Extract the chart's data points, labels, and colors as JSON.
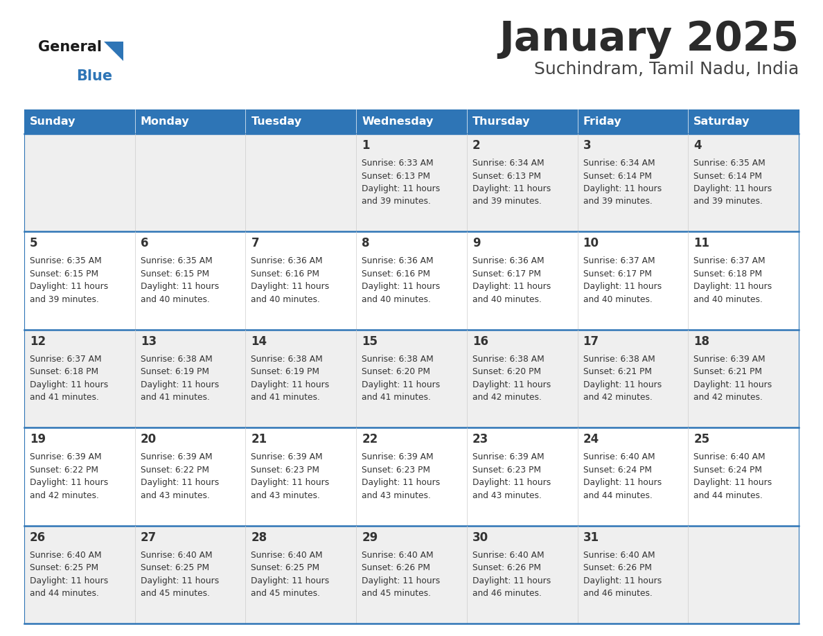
{
  "title": "January 2025",
  "subtitle": "Suchindram, Tamil Nadu, India",
  "header_bg": "#2E75B6",
  "header_text_color": "#FFFFFF",
  "cell_bg_odd": "#EFEFEF",
  "cell_bg_even": "#FFFFFF",
  "border_color": "#2E75B6",
  "day_headers": [
    "Sunday",
    "Monday",
    "Tuesday",
    "Wednesday",
    "Thursday",
    "Friday",
    "Saturday"
  ],
  "title_color": "#2B2B2B",
  "subtitle_color": "#444444",
  "day_number_color": "#333333",
  "cell_text_color": "#333333",
  "calendar_data": [
    [
      null,
      null,
      null,
      {
        "day": 1,
        "sunrise": "6:33 AM",
        "sunset": "6:13 PM",
        "daylight": "11 hours and 39 minutes."
      },
      {
        "day": 2,
        "sunrise": "6:34 AM",
        "sunset": "6:13 PM",
        "daylight": "11 hours and 39 minutes."
      },
      {
        "day": 3,
        "sunrise": "6:34 AM",
        "sunset": "6:14 PM",
        "daylight": "11 hours and 39 minutes."
      },
      {
        "day": 4,
        "sunrise": "6:35 AM",
        "sunset": "6:14 PM",
        "daylight": "11 hours and 39 minutes."
      }
    ],
    [
      {
        "day": 5,
        "sunrise": "6:35 AM",
        "sunset": "6:15 PM",
        "daylight": "11 hours and 39 minutes."
      },
      {
        "day": 6,
        "sunrise": "6:35 AM",
        "sunset": "6:15 PM",
        "daylight": "11 hours and 40 minutes."
      },
      {
        "day": 7,
        "sunrise": "6:36 AM",
        "sunset": "6:16 PM",
        "daylight": "11 hours and 40 minutes."
      },
      {
        "day": 8,
        "sunrise": "6:36 AM",
        "sunset": "6:16 PM",
        "daylight": "11 hours and 40 minutes."
      },
      {
        "day": 9,
        "sunrise": "6:36 AM",
        "sunset": "6:17 PM",
        "daylight": "11 hours and 40 minutes."
      },
      {
        "day": 10,
        "sunrise": "6:37 AM",
        "sunset": "6:17 PM",
        "daylight": "11 hours and 40 minutes."
      },
      {
        "day": 11,
        "sunrise": "6:37 AM",
        "sunset": "6:18 PM",
        "daylight": "11 hours and 40 minutes."
      }
    ],
    [
      {
        "day": 12,
        "sunrise": "6:37 AM",
        "sunset": "6:18 PM",
        "daylight": "11 hours and 41 minutes."
      },
      {
        "day": 13,
        "sunrise": "6:38 AM",
        "sunset": "6:19 PM",
        "daylight": "11 hours and 41 minutes."
      },
      {
        "day": 14,
        "sunrise": "6:38 AM",
        "sunset": "6:19 PM",
        "daylight": "11 hours and 41 minutes."
      },
      {
        "day": 15,
        "sunrise": "6:38 AM",
        "sunset": "6:20 PM",
        "daylight": "11 hours and 41 minutes."
      },
      {
        "day": 16,
        "sunrise": "6:38 AM",
        "sunset": "6:20 PM",
        "daylight": "11 hours and 42 minutes."
      },
      {
        "day": 17,
        "sunrise": "6:38 AM",
        "sunset": "6:21 PM",
        "daylight": "11 hours and 42 minutes."
      },
      {
        "day": 18,
        "sunrise": "6:39 AM",
        "sunset": "6:21 PM",
        "daylight": "11 hours and 42 minutes."
      }
    ],
    [
      {
        "day": 19,
        "sunrise": "6:39 AM",
        "sunset": "6:22 PM",
        "daylight": "11 hours and 42 minutes."
      },
      {
        "day": 20,
        "sunrise": "6:39 AM",
        "sunset": "6:22 PM",
        "daylight": "11 hours and 43 minutes."
      },
      {
        "day": 21,
        "sunrise": "6:39 AM",
        "sunset": "6:23 PM",
        "daylight": "11 hours and 43 minutes."
      },
      {
        "day": 22,
        "sunrise": "6:39 AM",
        "sunset": "6:23 PM",
        "daylight": "11 hours and 43 minutes."
      },
      {
        "day": 23,
        "sunrise": "6:39 AM",
        "sunset": "6:23 PM",
        "daylight": "11 hours and 43 minutes."
      },
      {
        "day": 24,
        "sunrise": "6:40 AM",
        "sunset": "6:24 PM",
        "daylight": "11 hours and 44 minutes."
      },
      {
        "day": 25,
        "sunrise": "6:40 AM",
        "sunset": "6:24 PM",
        "daylight": "11 hours and 44 minutes."
      }
    ],
    [
      {
        "day": 26,
        "sunrise": "6:40 AM",
        "sunset": "6:25 PM",
        "daylight": "11 hours and 44 minutes."
      },
      {
        "day": 27,
        "sunrise": "6:40 AM",
        "sunset": "6:25 PM",
        "daylight": "11 hours and 45 minutes."
      },
      {
        "day": 28,
        "sunrise": "6:40 AM",
        "sunset": "6:25 PM",
        "daylight": "11 hours and 45 minutes."
      },
      {
        "day": 29,
        "sunrise": "6:40 AM",
        "sunset": "6:26 PM",
        "daylight": "11 hours and 45 minutes."
      },
      {
        "day": 30,
        "sunrise": "6:40 AM",
        "sunset": "6:26 PM",
        "daylight": "11 hours and 46 minutes."
      },
      {
        "day": 31,
        "sunrise": "6:40 AM",
        "sunset": "6:26 PM",
        "daylight": "11 hours and 46 minutes."
      },
      null
    ]
  ]
}
